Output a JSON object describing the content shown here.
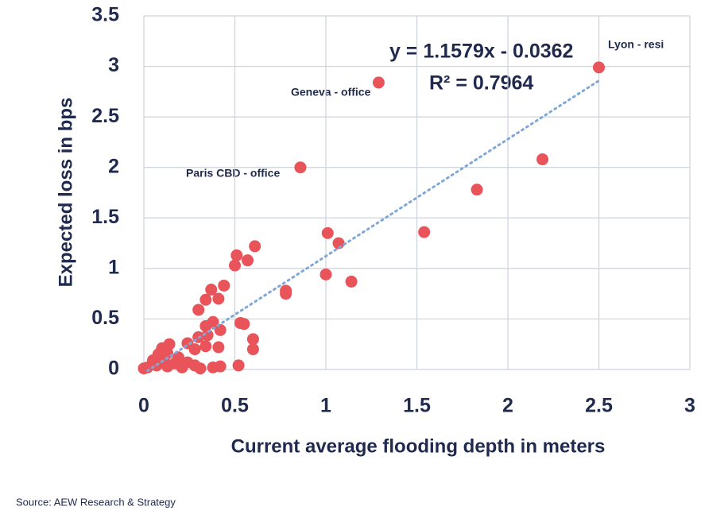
{
  "chart_data": {
    "type": "scatter",
    "xlabel": "Current average flooding depth in meters",
    "ylabel": "Expected loss in bps",
    "source": "Source: AEW Research & Strategy",
    "xlim": [
      0,
      3
    ],
    "xticks": [
      0,
      0.5,
      1,
      1.5,
      2,
      2.5,
      3
    ],
    "ylim": [
      0,
      3.5
    ],
    "yticks": [
      0,
      0.5,
      1,
      1.5,
      2,
      2.5,
      3,
      3.5
    ],
    "grid": true,
    "color": "#e9545b",
    "x": [
      2.5,
      1.29,
      0.86,
      2.19,
      1.83,
      1.54,
      1.01,
      1.07,
      1.0,
      1.14,
      0.78,
      0.78,
      0.61,
      0.51,
      0.5,
      0.57,
      0.44,
      0.37,
      0.41,
      0.34,
      0.3,
      0.53,
      0.55,
      0.38,
      0.34,
      0.42,
      0.35,
      0.3,
      0.6,
      0.6,
      0.41,
      0.34,
      0.24,
      0.28,
      0.14,
      0.1,
      0.13,
      0.08,
      0.19,
      0.05,
      0.24,
      0.28,
      0.52,
      0.42,
      0.38,
      0.31,
      0.0,
      0.02,
      0.13,
      0.21,
      0.07,
      0.17,
      0.11
    ],
    "y": [
      2.99,
      2.84,
      2.0,
      2.08,
      1.78,
      1.36,
      1.35,
      1.25,
      0.94,
      0.87,
      0.78,
      0.75,
      1.22,
      1.13,
      1.03,
      1.08,
      0.83,
      0.79,
      0.7,
      0.69,
      0.59,
      0.46,
      0.45,
      0.47,
      0.43,
      0.39,
      0.34,
      0.32,
      0.3,
      0.2,
      0.22,
      0.23,
      0.26,
      0.2,
      0.25,
      0.21,
      0.16,
      0.15,
      0.12,
      0.09,
      0.07,
      0.04,
      0.04,
      0.03,
      0.02,
      0.01,
      0.01,
      0.02,
      0.03,
      0.02,
      0.04,
      0.06,
      0.1
    ],
    "annotations": [
      "Lyon - resi",
      "Geneva - office",
      "Paris CBD - office"
    ],
    "trendline": {
      "equation": "y = 1.1579x - 0.0362",
      "r_squared": "R² = 0.7964",
      "slope": 1.1579,
      "intercept": -0.0362,
      "x": [
        0.02,
        2.5
      ],
      "color": "#7fa8d9"
    }
  }
}
